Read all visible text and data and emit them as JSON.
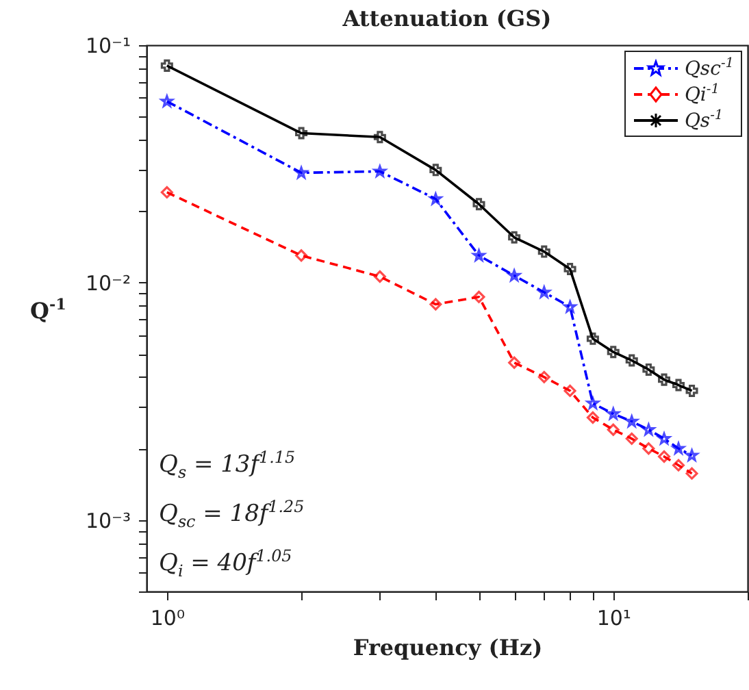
{
  "chart_data": {
    "type": "line",
    "title": "Attenuation (GS)",
    "xlabel": "Frequency (Hz)",
    "ylabel": "Q$^{-1}$",
    "log": "xy",
    "grid": false,
    "legend": "top right",
    "x": [
      1,
      2,
      3,
      4,
      5,
      6,
      7,
      8,
      9,
      10,
      11,
      12,
      13,
      14,
      15
    ],
    "xlim": [
      0.9,
      20
    ],
    "xticks": [
      {
        "value": 1,
        "label": "10⁰"
      },
      {
        "value": 2,
        "label": null
      },
      {
        "value": 3,
        "label": null
      },
      {
        "value": 4,
        "label": null
      },
      {
        "value": 5,
        "label": null
      },
      {
        "value": 6,
        "label": null
      },
      {
        "value": 7,
        "label": null
      },
      {
        "value": 8,
        "label": null
      },
      {
        "value": 9,
        "label": null
      },
      {
        "value": 10,
        "label": "10¹"
      },
      {
        "value": 20,
        "label": null
      }
    ],
    "ylim": [
      0.0005,
      0.1
    ],
    "yticks": [
      {
        "value": 0.0005,
        "label": null
      },
      {
        "value": 0.0006,
        "label": null
      },
      {
        "value": 0.0007,
        "label": null
      },
      {
        "value": 0.0008,
        "label": null
      },
      {
        "value": 0.0009,
        "label": null
      },
      {
        "value": 0.001,
        "label": "10⁻³"
      },
      {
        "value": 0.002,
        "label": null
      },
      {
        "value": 0.003,
        "label": null
      },
      {
        "value": 0.004,
        "label": null
      },
      {
        "value": 0.005,
        "label": null
      },
      {
        "value": 0.006,
        "label": null
      },
      {
        "value": 0.007,
        "label": null
      },
      {
        "value": 0.008,
        "label": null
      },
      {
        "value": 0.009,
        "label": null
      },
      {
        "value": 0.01,
        "label": "10⁻²"
      },
      {
        "value": 0.02,
        "label": null
      },
      {
        "value": 0.03,
        "label": null
      },
      {
        "value": 0.04,
        "label": null
      },
      {
        "value": 0.05,
        "label": null
      },
      {
        "value": 0.06,
        "label": null
      },
      {
        "value": 0.07,
        "label": null
      },
      {
        "value": 0.08,
        "label": null
      },
      {
        "value": 0.09,
        "label": null
      },
      {
        "value": 0.1,
        "label": "10⁻¹"
      }
    ],
    "series": [
      {
        "name": "Qsc$^{-1}$",
        "color": "#0000ff",
        "line_style": "dashdot",
        "marker": "star",
        "values": [
          0.058,
          0.029,
          0.0294,
          0.0225,
          0.013,
          0.0107,
          0.0091,
          0.0079,
          0.0031,
          0.0028,
          0.0026,
          0.0024,
          0.0022,
          0.002,
          0.00187
        ]
      },
      {
        "name": "Qi$^{-1}$",
        "color": "#ff0000",
        "line_style": "dashed",
        "marker": "diamond",
        "values": [
          0.024,
          0.013,
          0.0106,
          0.0081,
          0.0087,
          0.0046,
          0.004,
          0.0035,
          0.0027,
          0.0024,
          0.0022,
          0.002,
          0.00185,
          0.0017,
          0.00157
        ]
      },
      {
        "name": "Qs$^{-1}$",
        "color": "#000000",
        "line_style": "solid",
        "marker": "cross",
        "values": [
          0.082,
          0.0426,
          0.041,
          0.0298,
          0.0214,
          0.0155,
          0.0135,
          0.0114,
          0.0058,
          0.0051,
          0.0047,
          0.0043,
          0.0039,
          0.0037,
          0.0035
        ]
      }
    ],
    "annotations": [
      "Q$_{s}$ = 13f$^{1.15}$",
      "Q$_{sc}$ = 18f$^{1.25}$",
      "Q$_{i}$ = 40f$^{1.05}$"
    ]
  }
}
